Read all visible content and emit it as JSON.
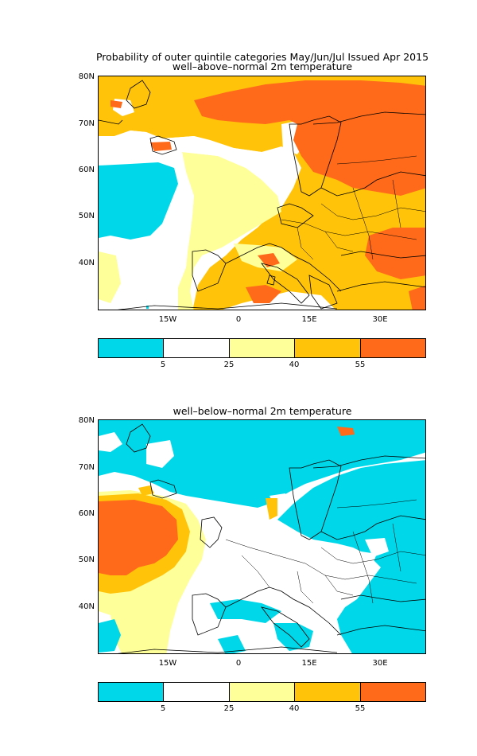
{
  "header": {
    "title": "Probability of outer quintile categories May/Jun/Jul Issued Apr 2015"
  },
  "panels": [
    {
      "subtitle": "well–above–normal 2m temperature",
      "lat_labels": [
        "80N",
        "70N",
        "60N",
        "50N",
        "40N"
      ],
      "lon_labels": [
        "15W",
        "0",
        "15E",
        "30E"
      ]
    },
    {
      "subtitle": "well–below–normal 2m temperature",
      "lat_labels": [
        "80N",
        "70N",
        "60N",
        "50N",
        "40N"
      ],
      "lon_labels": [
        "15W",
        "0",
        "15E",
        "30E"
      ]
    }
  ],
  "colorbar": {
    "tick_labels": [
      "5",
      "25",
      "40",
      "55"
    ],
    "colors": [
      "#00d7e8",
      "#ffffff",
      "#ffff99",
      "#ffc40a",
      "#ff6a1a"
    ]
  }
}
